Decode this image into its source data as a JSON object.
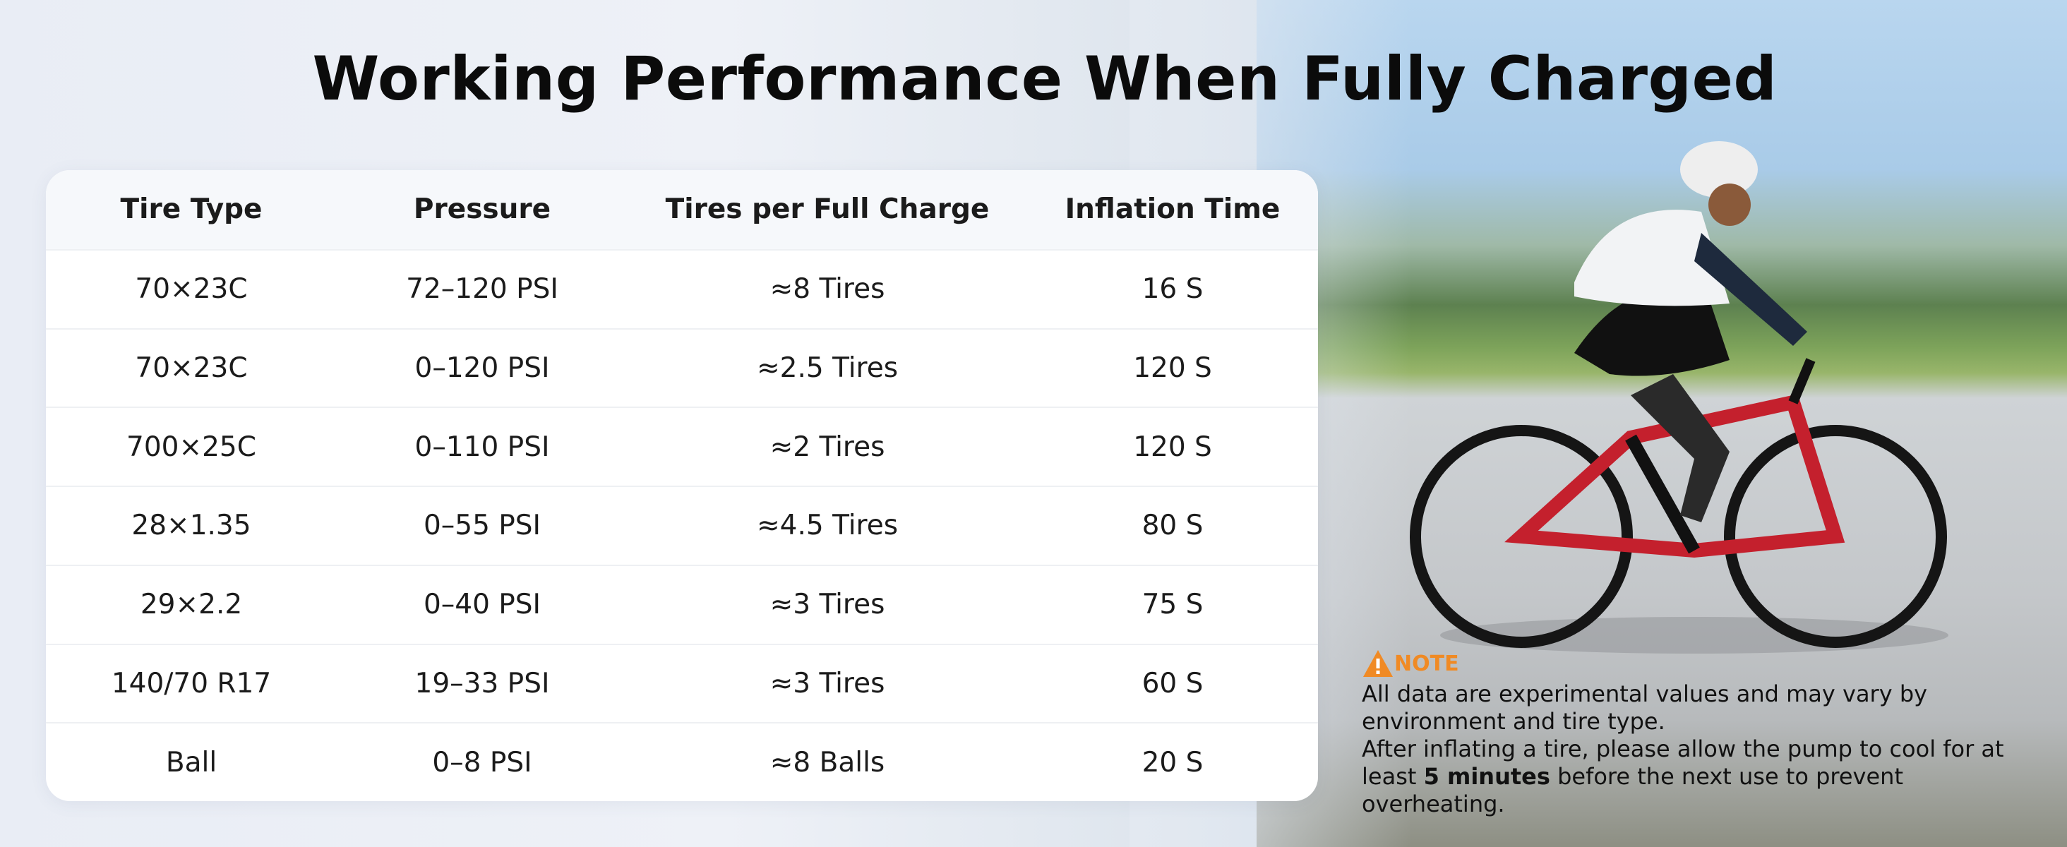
{
  "header": {
    "title": "Working Performance When Fully Charged"
  },
  "table": {
    "columns": [
      "Tire Type",
      "Pressure",
      "Tires per Full Charge",
      "Inflation Time"
    ],
    "rows": [
      [
        "70×23C",
        "72–120 PSI",
        "≈8 Tires",
        "16 S"
      ],
      [
        "70×23C",
        "0–120 PSI",
        "≈2.5 Tires",
        "120 S"
      ],
      [
        "700×25C",
        "0–110 PSI",
        "≈2 Tires",
        "120 S"
      ],
      [
        "28×1.35",
        "0–55 PSI",
        "≈4.5 Tires",
        "80 S"
      ],
      [
        "29×2.2",
        "0–40 PSI",
        "≈3 Tires",
        "75 S"
      ],
      [
        "140/70 R17",
        "19–33 PSI",
        "≈3 Tires",
        "60 S"
      ],
      [
        "Ball",
        "0–8 PSI",
        "≈8 Balls",
        "20 S"
      ]
    ]
  },
  "note": {
    "title": "NOTE",
    "paragraphs": [
      "All data are experimental values and may vary by environment and tire type.",
      {
        "before": "After inflating a tire, please allow the pump to cool for at least",
        "bold": "5 minutes",
        "after": "before the next use to prevent overheating."
      }
    ]
  }
}
